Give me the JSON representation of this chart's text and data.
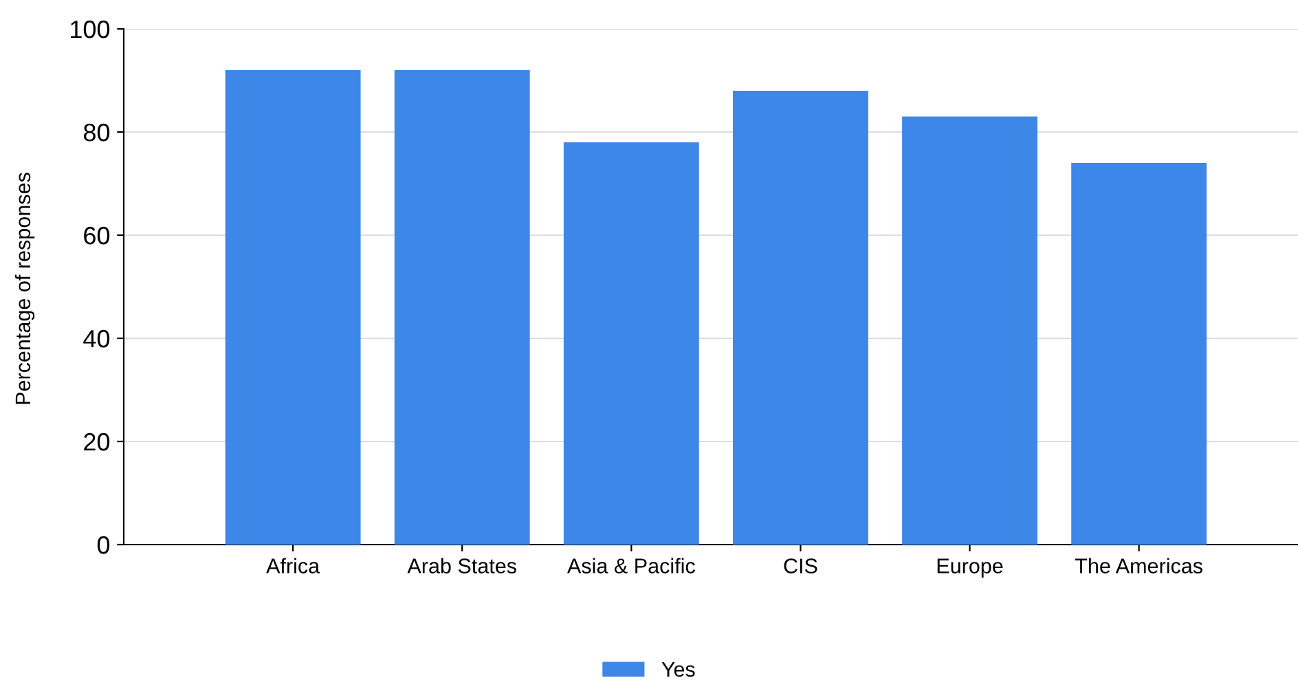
{
  "chart_data": {
    "type": "bar",
    "ylabel": "Percentage of responses",
    "categories": [
      "Africa",
      "Arab States",
      "Asia & Pacific",
      "CIS",
      "Europe",
      "The Americas"
    ],
    "series": [
      {
        "name": "Yes",
        "color": "#3d87e8",
        "values": [
          92,
          92,
          78,
          88,
          83,
          74
        ]
      }
    ],
    "ylim": [
      0,
      100
    ],
    "yticks": [
      0,
      20,
      40,
      60,
      80,
      100
    ],
    "grid": "y",
    "legend": "bottom"
  }
}
